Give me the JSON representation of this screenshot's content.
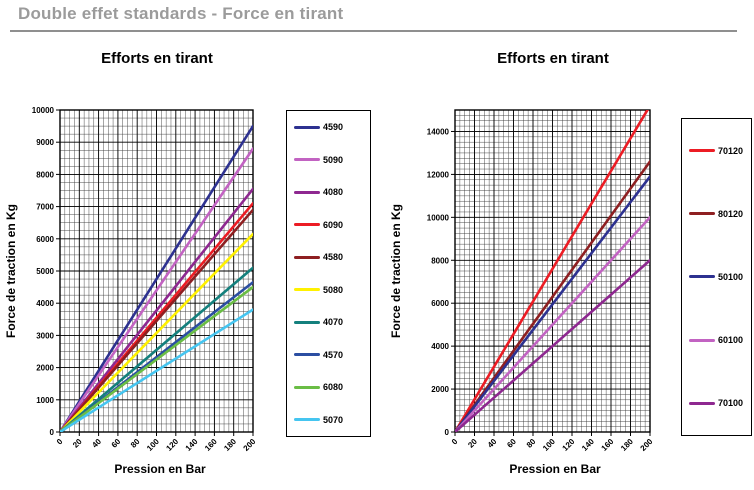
{
  "header": {
    "title": "Double effet standards - Force en tirant"
  },
  "theme": {
    "background": "#ffffff",
    "header_text": "#9b9b9b",
    "header_rule": "#8f8f8f",
    "axis_title_red": "#ED1C24",
    "grid_color": "#000000"
  },
  "chart_data": [
    {
      "type": "line",
      "title": "Efforts en tirant",
      "xlabel": "Pression en Bar",
      "ylabel": "Force de traction en Kg",
      "ylabel_color": "#ED1C24",
      "xlim": [
        0,
        200
      ],
      "ylim": [
        0,
        10000
      ],
      "x_ticks": [
        0,
        20,
        40,
        60,
        80,
        100,
        120,
        140,
        160,
        180,
        200
      ],
      "y_ticks": [
        0,
        1000,
        2000,
        3000,
        4000,
        5000,
        6000,
        7000,
        8000,
        9000,
        10000
      ],
      "x_minor_step": 5,
      "y_minor_step": 250,
      "grid": true,
      "legend_position": "right",
      "series": [
        {
          "name": "4590",
          "color": "#2D3190",
          "x": [
            0,
            200
          ],
          "y": [
            0,
            9500
          ]
        },
        {
          "name": "5090",
          "color": "#C263C2",
          "x": [
            0,
            200
          ],
          "y": [
            0,
            8800
          ]
        },
        {
          "name": "4080",
          "color": "#8E2890",
          "x": [
            0,
            200
          ],
          "y": [
            0,
            7550
          ]
        },
        {
          "name": "6090",
          "color": "#EC1C24",
          "x": [
            0,
            200
          ],
          "y": [
            0,
            7100
          ]
        },
        {
          "name": "4580",
          "color": "#8E1F21",
          "x": [
            0,
            200
          ],
          "y": [
            0,
            6900
          ]
        },
        {
          "name": "5080",
          "color": "#FFF100",
          "x": [
            0,
            200
          ],
          "y": [
            0,
            6150
          ]
        },
        {
          "name": "4070",
          "color": "#14807D",
          "x": [
            0,
            200
          ],
          "y": [
            0,
            5100
          ]
        },
        {
          "name": "4570",
          "color": "#2B4EA2",
          "x": [
            0,
            200
          ],
          "y": [
            0,
            4650
          ]
        },
        {
          "name": "6080",
          "color": "#6ABD45",
          "x": [
            0,
            200
          ],
          "y": [
            0,
            4500
          ]
        },
        {
          "name": "5070",
          "color": "#45C5F0",
          "x": [
            0,
            200
          ],
          "y": [
            0,
            3800
          ]
        }
      ]
    },
    {
      "type": "line",
      "title": "Efforts en tirant",
      "xlabel": "Pression en Bar",
      "ylabel": "Force de traction en Kg",
      "ylabel_color": "#ED1C24",
      "xlim": [
        0,
        200
      ],
      "ylim": [
        0,
        15000
      ],
      "x_ticks": [
        0,
        20,
        40,
        60,
        80,
        100,
        120,
        140,
        160,
        180,
        200
      ],
      "y_ticks": [
        0,
        2000,
        4000,
        6000,
        8000,
        10000,
        12000,
        14000
      ],
      "x_minor_step": 5,
      "y_minor_step": 250,
      "grid": true,
      "legend_position": "right",
      "series": [
        {
          "name": "70120",
          "color": "#EC1C24",
          "x": [
            0,
            200
          ],
          "y": [
            0,
            15200
          ]
        },
        {
          "name": "80120",
          "color": "#8E1F21",
          "x": [
            0,
            200
          ],
          "y": [
            0,
            12600
          ]
        },
        {
          "name": "50100",
          "color": "#2D3190",
          "x": [
            0,
            200
          ],
          "y": [
            0,
            11900
          ]
        },
        {
          "name": "60100",
          "color": "#C263C2",
          "x": [
            0,
            200
          ],
          "y": [
            0,
            10000
          ]
        },
        {
          "name": "70100",
          "color": "#8E2890",
          "x": [
            0,
            200
          ],
          "y": [
            0,
            8000
          ]
        }
      ]
    }
  ]
}
